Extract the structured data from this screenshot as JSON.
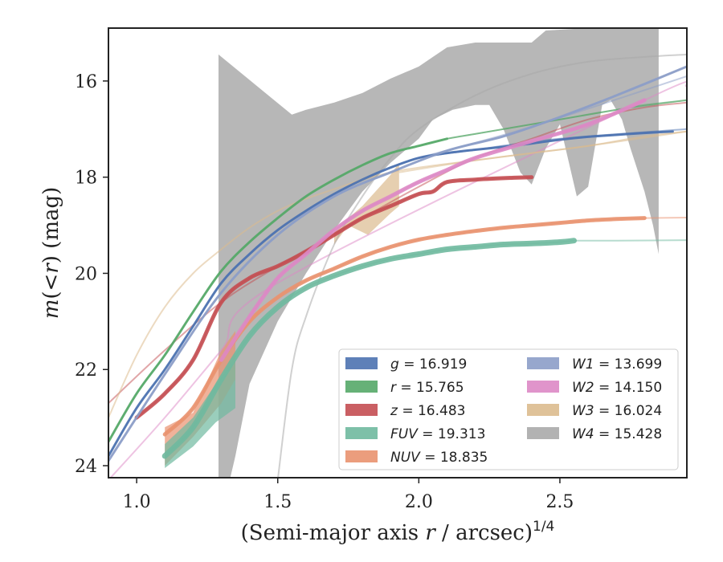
{
  "chart_data": {
    "type": "line",
    "xlabel_main": "(Semi-major axis ",
    "xlabel_var": "r",
    "xlabel_unit": " / arcsec)",
    "xlabel_sup": "1/4",
    "ylabel_m": "m",
    "ylabel_open": "(<",
    "ylabel_r": "r",
    "ylabel_close": ") (mag)",
    "xlim": [
      0.9,
      2.95
    ],
    "ylim": [
      24.25,
      14.9
    ],
    "y_inverted": true,
    "x_ticks": [
      1.0,
      1.5,
      2.0,
      2.5
    ],
    "x_tick_labels": [
      "1.0",
      "1.5",
      "2.0",
      "2.5"
    ],
    "y_ticks": [
      16,
      18,
      20,
      22,
      24
    ],
    "y_tick_labels": [
      "16",
      "18",
      "20",
      "22",
      "24"
    ],
    "grid": false,
    "legend_placement": "lower-right",
    "legend": [
      {
        "band": "g",
        "value": "16.919",
        "color": "#4c72b0"
      },
      {
        "band": "r",
        "value": "15.765",
        "color": "#55a868"
      },
      {
        "band": "z",
        "value": "16.483",
        "color": "#c44e52"
      },
      {
        "band": "FUV",
        "value": "19.313",
        "color": "#6fb99f"
      },
      {
        "band": "NUV",
        "value": "18.835",
        "color": "#e9926f"
      },
      {
        "band": "W1",
        "value": "13.699",
        "color": "#8c9dc8"
      },
      {
        "band": "W2",
        "value": "14.150",
        "color": "#dd88c5"
      },
      {
        "band": "W3",
        "value": "16.024",
        "color": "#dcbb8e"
      },
      {
        "band": "W4",
        "value": "15.428",
        "color": "#aaaaaa"
      }
    ],
    "series": [
      {
        "name": "g",
        "color": "#4c72b0",
        "data": [
          [
            0.9,
            23.8
          ],
          [
            1.0,
            22.8
          ],
          [
            1.1,
            22.0
          ],
          [
            1.2,
            21.1
          ],
          [
            1.3,
            20.2
          ],
          [
            1.4,
            19.6
          ],
          [
            1.5,
            19.1
          ],
          [
            1.6,
            18.7
          ],
          [
            1.7,
            18.35
          ],
          [
            1.8,
            18.05
          ],
          [
            1.9,
            17.8
          ],
          [
            2.0,
            17.6
          ],
          [
            2.1,
            17.5
          ],
          [
            2.2,
            17.43
          ],
          [
            2.3,
            17.37
          ],
          [
            2.4,
            17.3
          ],
          [
            2.5,
            17.22
          ],
          [
            2.6,
            17.16
          ],
          [
            2.7,
            17.12
          ],
          [
            2.8,
            17.08
          ],
          [
            2.9,
            17.05
          ]
        ],
        "data_end": 2.9,
        "model": [
          [
            1.9,
            17.8
          ],
          [
            2.0,
            17.6
          ],
          [
            2.2,
            17.43
          ],
          [
            2.5,
            17.2
          ],
          [
            2.95,
            17.0
          ]
        ]
      },
      {
        "name": "r",
        "color": "#55a868",
        "data": [
          [
            0.9,
            23.5
          ],
          [
            1.0,
            22.5
          ],
          [
            1.1,
            21.7
          ],
          [
            1.2,
            20.8
          ],
          [
            1.3,
            19.95
          ],
          [
            1.4,
            19.35
          ],
          [
            1.5,
            18.85
          ],
          [
            1.6,
            18.4
          ],
          [
            1.7,
            18.05
          ],
          [
            1.8,
            17.75
          ],
          [
            1.9,
            17.5
          ],
          [
            2.0,
            17.35
          ],
          [
            2.1,
            17.2
          ],
          [
            2.2,
            17.1
          ],
          [
            2.3,
            17.0
          ],
          [
            2.4,
            16.9
          ],
          [
            2.5,
            16.8
          ],
          [
            2.6,
            16.7
          ],
          [
            2.7,
            16.6
          ],
          [
            2.8,
            16.5
          ],
          [
            2.95,
            16.4
          ]
        ],
        "data_end": 2.15,
        "model": [
          [
            2.1,
            17.2
          ],
          [
            2.3,
            17.0
          ],
          [
            2.5,
            16.8
          ],
          [
            2.7,
            16.6
          ],
          [
            2.95,
            16.4
          ]
        ]
      },
      {
        "name": "z",
        "color": "#c44e52",
        "data": [
          [
            1.0,
            23.0
          ],
          [
            1.1,
            22.5
          ],
          [
            1.2,
            21.8
          ],
          [
            1.3,
            20.6
          ],
          [
            1.4,
            20.1
          ],
          [
            1.5,
            19.85
          ],
          [
            1.6,
            19.55
          ],
          [
            1.7,
            19.2
          ],
          [
            1.8,
            18.85
          ],
          [
            1.9,
            18.6
          ],
          [
            2.0,
            18.35
          ],
          [
            2.05,
            18.3
          ],
          [
            2.1,
            18.1
          ],
          [
            2.2,
            18.05
          ],
          [
            2.3,
            18.02
          ],
          [
            2.4,
            18.0
          ]
        ],
        "data_end": 2.4,
        "model": [
          [
            0.9,
            22.7
          ],
          [
            1.1,
            21.6
          ],
          [
            1.3,
            20.6
          ],
          [
            1.5,
            19.85
          ],
          [
            1.8,
            18.85
          ],
          [
            2.0,
            18.2
          ],
          [
            2.2,
            17.6
          ],
          [
            2.4,
            17.2
          ],
          [
            2.6,
            16.8
          ],
          [
            2.8,
            16.55
          ],
          [
            2.95,
            16.45
          ]
        ]
      },
      {
        "name": "FUV",
        "color": "#6fb99f",
        "data": [
          [
            1.1,
            23.8
          ],
          [
            1.2,
            23.2
          ],
          [
            1.3,
            22.2
          ],
          [
            1.4,
            21.3
          ],
          [
            1.5,
            20.7
          ],
          [
            1.6,
            20.3
          ],
          [
            1.7,
            20.05
          ],
          [
            1.8,
            19.85
          ],
          [
            1.9,
            19.7
          ],
          [
            2.0,
            19.6
          ],
          [
            2.1,
            19.5
          ],
          [
            2.2,
            19.45
          ],
          [
            2.3,
            19.4
          ],
          [
            2.4,
            19.38
          ],
          [
            2.5,
            19.35
          ],
          [
            2.55,
            19.32
          ]
        ],
        "data_end": 2.55,
        "model": [
          [
            2.55,
            19.32
          ],
          [
            2.7,
            19.32
          ],
          [
            2.95,
            19.31
          ]
        ]
      },
      {
        "name": "NUV",
        "color": "#e9926f",
        "data": [
          [
            1.1,
            23.35
          ],
          [
            1.2,
            22.8
          ],
          [
            1.3,
            21.8
          ],
          [
            1.4,
            21.0
          ],
          [
            1.5,
            20.5
          ],
          [
            1.6,
            20.15
          ],
          [
            1.7,
            19.9
          ],
          [
            1.8,
            19.65
          ],
          [
            1.9,
            19.45
          ],
          [
            2.0,
            19.3
          ],
          [
            2.1,
            19.2
          ],
          [
            2.2,
            19.12
          ],
          [
            2.3,
            19.05
          ],
          [
            2.4,
            19.0
          ],
          [
            2.5,
            18.95
          ],
          [
            2.6,
            18.9
          ],
          [
            2.7,
            18.87
          ],
          [
            2.8,
            18.85
          ]
        ],
        "data_end": 2.8,
        "model": [
          [
            2.8,
            18.85
          ],
          [
            2.95,
            18.84
          ]
        ]
      },
      {
        "name": "W1",
        "color": "#8c9dc8",
        "data": [
          [
            0.9,
            23.9
          ],
          [
            1.1,
            22.1
          ],
          [
            1.3,
            20.4
          ],
          [
            1.5,
            19.2
          ],
          [
            1.7,
            18.4
          ],
          [
            1.9,
            17.9
          ],
          [
            2.1,
            17.45
          ],
          [
            2.3,
            17.15
          ],
          [
            2.5,
            16.75
          ],
          [
            2.7,
            16.3
          ],
          [
            2.95,
            15.7
          ]
        ],
        "data_end": 2.95,
        "model": [
          [
            2.0,
            17.6
          ],
          [
            2.4,
            16.95
          ],
          [
            2.95,
            15.9
          ]
        ]
      },
      {
        "name": "W2",
        "color": "#dd88c5",
        "data": [
          [
            1.3,
            21.8
          ],
          [
            1.4,
            20.9
          ],
          [
            1.5,
            20.1
          ],
          [
            1.6,
            19.6
          ],
          [
            1.7,
            19.1
          ],
          [
            1.8,
            18.7
          ],
          [
            1.9,
            18.4
          ],
          [
            2.0,
            18.1
          ],
          [
            2.1,
            17.85
          ],
          [
            2.2,
            17.6
          ],
          [
            2.4,
            17.25
          ],
          [
            2.6,
            16.9
          ],
          [
            2.8,
            16.4
          ]
        ],
        "data_end": 2.8,
        "model": [
          [
            0.9,
            24.3
          ],
          [
            1.1,
            23.0
          ],
          [
            1.3,
            21.6
          ],
          [
            1.5,
            20.2
          ],
          [
            2.8,
            16.4
          ],
          [
            2.95,
            16.1
          ]
        ]
      },
      {
        "name": "W3",
        "color": "#dcbb8e",
        "data": [
          [
            0.9,
            23.0
          ],
          [
            1.0,
            21.7
          ],
          [
            1.1,
            20.7
          ],
          [
            1.2,
            20.0
          ],
          [
            1.3,
            19.5
          ],
          [
            1.4,
            19.05
          ],
          [
            1.5,
            18.7
          ],
          [
            1.6,
            18.45
          ],
          [
            1.7,
            18.25
          ],
          [
            1.8,
            18.05
          ],
          [
            1.9,
            17.9
          ],
          [
            2.0,
            17.8
          ],
          [
            2.2,
            17.65
          ],
          [
            2.4,
            17.5
          ],
          [
            2.6,
            17.35
          ],
          [
            2.8,
            17.15
          ],
          [
            2.95,
            17.05
          ]
        ],
        "data_end": 1.93,
        "model": [
          [
            1.93,
            17.9
          ],
          [
            2.2,
            17.65
          ],
          [
            2.6,
            17.35
          ],
          [
            2.95,
            17.05
          ]
        ]
      },
      {
        "name": "W4",
        "color": "#aaaaaa",
        "data": [
          [
            1.5,
            24.3
          ],
          [
            1.55,
            22.0
          ],
          [
            1.6,
            20.9
          ],
          [
            1.7,
            19.4
          ],
          [
            1.8,
            18.4
          ],
          [
            1.9,
            17.6
          ],
          [
            2.0,
            17.0
          ],
          [
            2.2,
            16.3
          ],
          [
            2.4,
            15.85
          ],
          [
            2.6,
            15.6
          ],
          [
            2.8,
            15.5
          ],
          [
            2.95,
            15.45
          ]
        ],
        "data_end": 1.5,
        "model": []
      }
    ],
    "bands": [
      {
        "name": "W4",
        "color": "#aaaaaa",
        "upper": [
          [
            1.29,
            15.45
          ],
          [
            1.55,
            16.7
          ],
          [
            1.6,
            16.6
          ],
          [
            1.7,
            16.45
          ],
          [
            1.8,
            16.25
          ],
          [
            1.9,
            15.95
          ],
          [
            2.0,
            15.7
          ],
          [
            2.05,
            15.5
          ],
          [
            2.1,
            15.3
          ],
          [
            2.2,
            15.2
          ],
          [
            2.3,
            15.2
          ],
          [
            2.4,
            15.2
          ],
          [
            2.45,
            14.95
          ],
          [
            2.6,
            14.9
          ],
          [
            2.85,
            14.9
          ]
        ],
        "lower": [
          [
            2.85,
            19.6
          ],
          [
            2.83,
            19.0
          ],
          [
            2.8,
            18.3
          ],
          [
            2.75,
            17.4
          ],
          [
            2.72,
            16.8
          ],
          [
            2.68,
            16.4
          ],
          [
            2.65,
            16.5
          ],
          [
            2.6,
            18.2
          ],
          [
            2.56,
            18.4
          ],
          [
            2.5,
            16.9
          ],
          [
            2.45,
            17.4
          ],
          [
            2.4,
            18.15
          ],
          [
            2.36,
            17.9
          ],
          [
            2.3,
            17.0
          ],
          [
            2.25,
            16.5
          ],
          [
            2.2,
            16.5
          ],
          [
            2.12,
            16.6
          ],
          [
            2.05,
            16.8
          ],
          [
            2.0,
            17.2
          ],
          [
            1.9,
            17.7
          ],
          [
            1.8,
            18.3
          ],
          [
            1.7,
            19.1
          ],
          [
            1.6,
            20.0
          ],
          [
            1.5,
            21.0
          ],
          [
            1.4,
            22.3
          ],
          [
            1.35,
            23.8
          ],
          [
            1.33,
            24.3
          ],
          [
            1.29,
            24.3
          ]
        ]
      },
      {
        "name": "W3",
        "color": "#dcbb8e",
        "upper": [
          [
            1.7,
            19.1
          ],
          [
            1.8,
            18.6
          ],
          [
            1.9,
            17.95
          ],
          [
            1.93,
            17.7
          ]
        ],
        "lower": [
          [
            1.93,
            18.6
          ],
          [
            1.9,
            18.75
          ],
          [
            1.82,
            19.2
          ],
          [
            1.75,
            19.0
          ],
          [
            1.7,
            19.4
          ]
        ]
      },
      {
        "name": "NUV",
        "color": "#e9926f",
        "upper": [
          [
            1.1,
            23.2
          ],
          [
            1.2,
            22.9
          ],
          [
            1.3,
            21.6
          ],
          [
            1.35,
            21.2
          ]
        ],
        "lower": [
          [
            1.35,
            22.2
          ],
          [
            1.3,
            22.7
          ],
          [
            1.2,
            23.4
          ],
          [
            1.1,
            24.0
          ]
        ]
      },
      {
        "name": "FUV",
        "color": "#6fb99f",
        "upper": [
          [
            1.1,
            23.55
          ],
          [
            1.2,
            23.0
          ],
          [
            1.28,
            22.3
          ],
          [
            1.35,
            21.8
          ]
        ],
        "lower": [
          [
            1.35,
            22.8
          ],
          [
            1.28,
            23.1
          ],
          [
            1.2,
            23.6
          ],
          [
            1.1,
            24.05
          ]
        ]
      }
    ]
  }
}
